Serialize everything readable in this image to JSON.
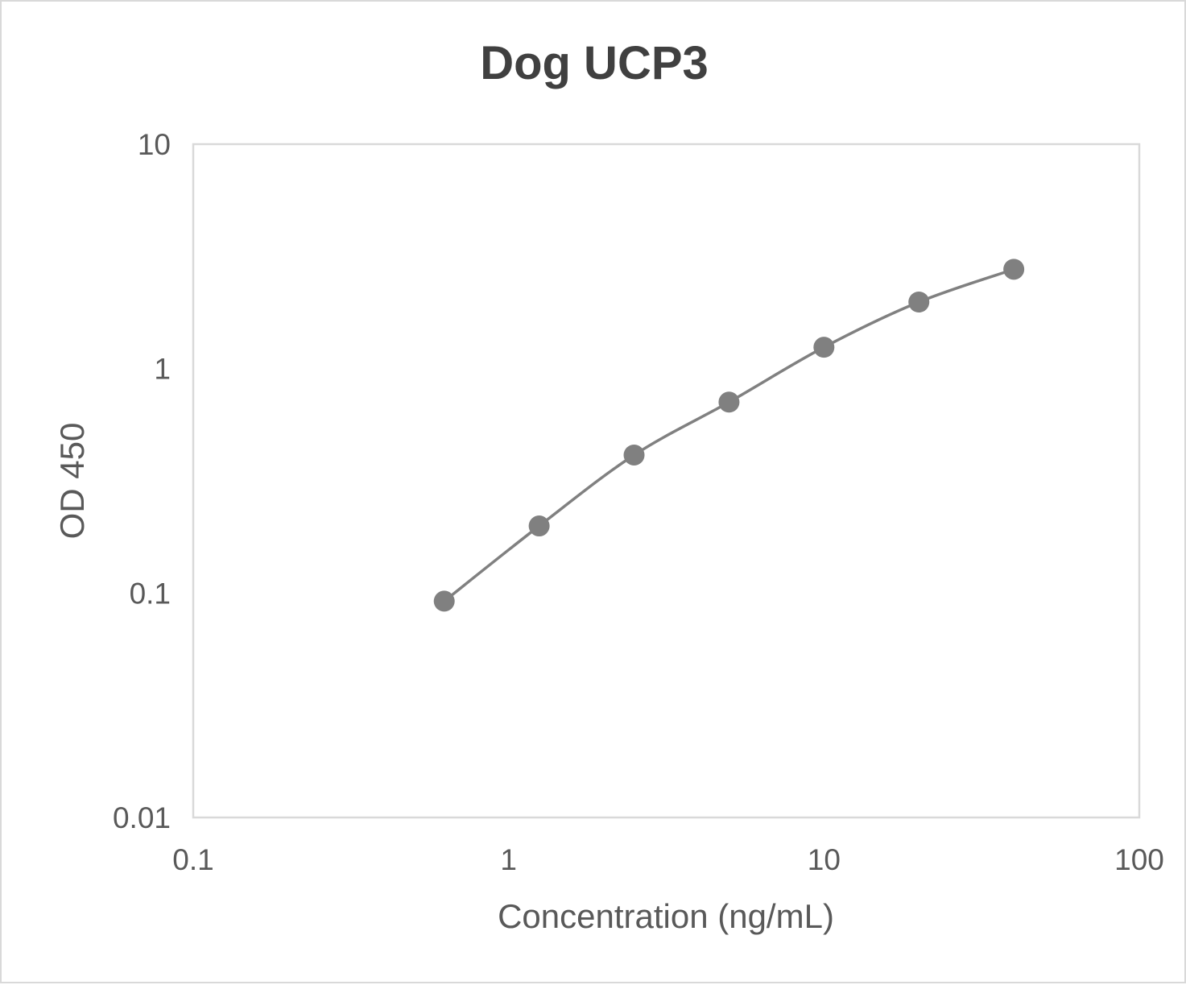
{
  "chart_data": {
    "type": "scatter",
    "title": "Dog UCP3",
    "xlabel": "Concentration (ng/mL)",
    "ylabel": "OD 450",
    "x_scale": "log",
    "y_scale": "log",
    "xlim": [
      0.1,
      100
    ],
    "ylim": [
      0.01,
      10
    ],
    "x_ticks": [
      "0.1",
      "1",
      "10",
      "100"
    ],
    "y_ticks": [
      "0.01",
      "0.1",
      "1",
      "10"
    ],
    "grid": false,
    "legend": "none",
    "line": "smoothed",
    "color": "#808080",
    "series": [
      {
        "x": [
          0.625,
          1.25,
          2.5,
          5,
          10,
          20,
          40
        ],
        "y": [
          0.092,
          0.199,
          0.412,
          0.709,
          1.245,
          1.98,
          2.77
        ]
      }
    ]
  }
}
